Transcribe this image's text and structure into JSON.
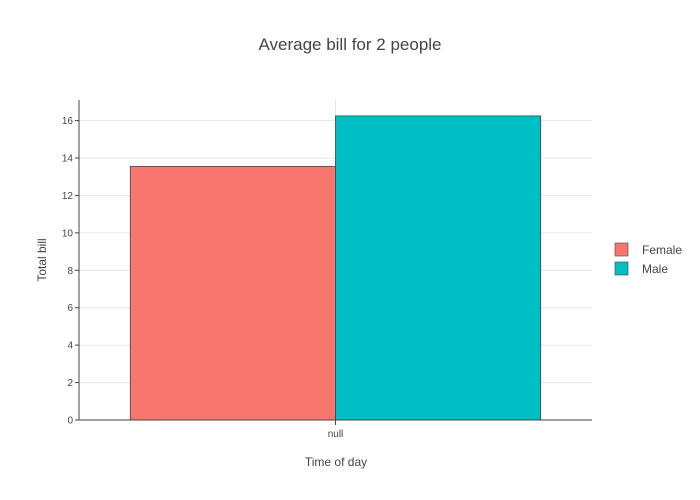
{
  "chart_data": {
    "type": "bar",
    "title": "Average bill for 2 people",
    "xlabel": "Time of day",
    "ylabel": "Total bill",
    "categories": [
      "null"
    ],
    "series": [
      {
        "name": "Female",
        "values": [
          13.55
        ],
        "color": "#F8766D"
      },
      {
        "name": "Male",
        "values": [
          16.25
        ],
        "color": "#00BFC4"
      }
    ],
    "ylim": [
      0,
      17.1
    ],
    "yticks": [
      0,
      2,
      4,
      6,
      8,
      10,
      12,
      14,
      16
    ],
    "grid": true,
    "legend_position": "right"
  }
}
